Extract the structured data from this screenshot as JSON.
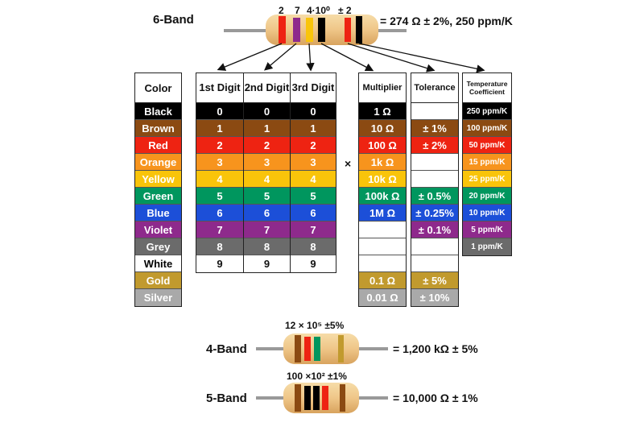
{
  "six_band": {
    "label": "6-Band",
    "top_labels": [
      "2",
      "7",
      "4·10⁰",
      "± 2"
    ],
    "formula": "= 274 Ω ± 2%, 250 ppm/K"
  },
  "four_band": {
    "label": "4-Band",
    "top_label": "12 × 10⁵ ±5%",
    "formula": "= 1,200 kΩ ± 5%"
  },
  "five_band": {
    "label": "5-Band",
    "top_label": "100 ×10² ±1%",
    "formula": "= 10,000 Ω ± 1%"
  },
  "multiply_sign": "×",
  "headers": {
    "color": "Color",
    "digit1": "1st Digit",
    "digit2": "2nd Digit",
    "digit3": "3rd Digit",
    "multiplier": "Multiplier",
    "tolerance": "Tolerance",
    "temperature": "Temperature Coefficient"
  },
  "colors": [
    {
      "name": "Black",
      "hex": "#000000",
      "text": "#ffffff",
      "digit": "0",
      "multiplier": "1 Ω",
      "tolerance": "",
      "temp": "250 ppm/K"
    },
    {
      "name": "Brown",
      "hex": "#8b4a12",
      "text": "#ffffff",
      "digit": "1",
      "multiplier": "10 Ω",
      "tolerance": "± 1%",
      "temp": "100 ppm/K"
    },
    {
      "name": "Red",
      "hex": "#ee2312",
      "text": "#ffffff",
      "digit": "2",
      "multiplier": "100 Ω",
      "tolerance": "± 2%",
      "temp": "50 ppm/K"
    },
    {
      "name": "Orange",
      "hex": "#f7941d",
      "text": "#ffffff",
      "digit": "3",
      "multiplier": "1k Ω",
      "tolerance": "",
      "temp": "15 ppm/K"
    },
    {
      "name": "Yellow",
      "hex": "#f9c40a",
      "text": "#ffffff",
      "digit": "4",
      "multiplier": "10k Ω",
      "tolerance": "",
      "temp": "25 ppm/K"
    },
    {
      "name": "Green",
      "hex": "#00965e",
      "text": "#ffffff",
      "digit": "5",
      "multiplier": "100k Ω",
      "tolerance": "± 0.5%",
      "temp": "20 ppm/K"
    },
    {
      "name": "Blue",
      "hex": "#1c4fd8",
      "text": "#ffffff",
      "digit": "6",
      "multiplier": "1M Ω",
      "tolerance": "± 0.25%",
      "temp": "10 ppm/K"
    },
    {
      "name": "Violet",
      "hex": "#8e2a8c",
      "text": "#ffffff",
      "digit": "7",
      "multiplier": "",
      "tolerance": "± 0.1%",
      "temp": "5 ppm/K"
    },
    {
      "name": "Grey",
      "hex": "#6b6b6b",
      "text": "#ffffff",
      "digit": "8",
      "multiplier": "",
      "tolerance": "",
      "temp": "1 ppm/K"
    },
    {
      "name": "White",
      "hex": "#ffffff",
      "text": "#000000",
      "digit": "9",
      "multiplier": "",
      "tolerance": "",
      "temp": ""
    },
    {
      "name": "Gold",
      "hex": "#c19a2e",
      "text": "#ffffff",
      "digit": "",
      "multiplier": "0.1 Ω",
      "tolerance": "± 5%",
      "temp": ""
    },
    {
      "name": "Silver",
      "hex": "#a9a9a9",
      "text": "#ffffff",
      "digit": "",
      "multiplier": "0.01 Ω",
      "tolerance": "± 10%",
      "temp": ""
    }
  ]
}
